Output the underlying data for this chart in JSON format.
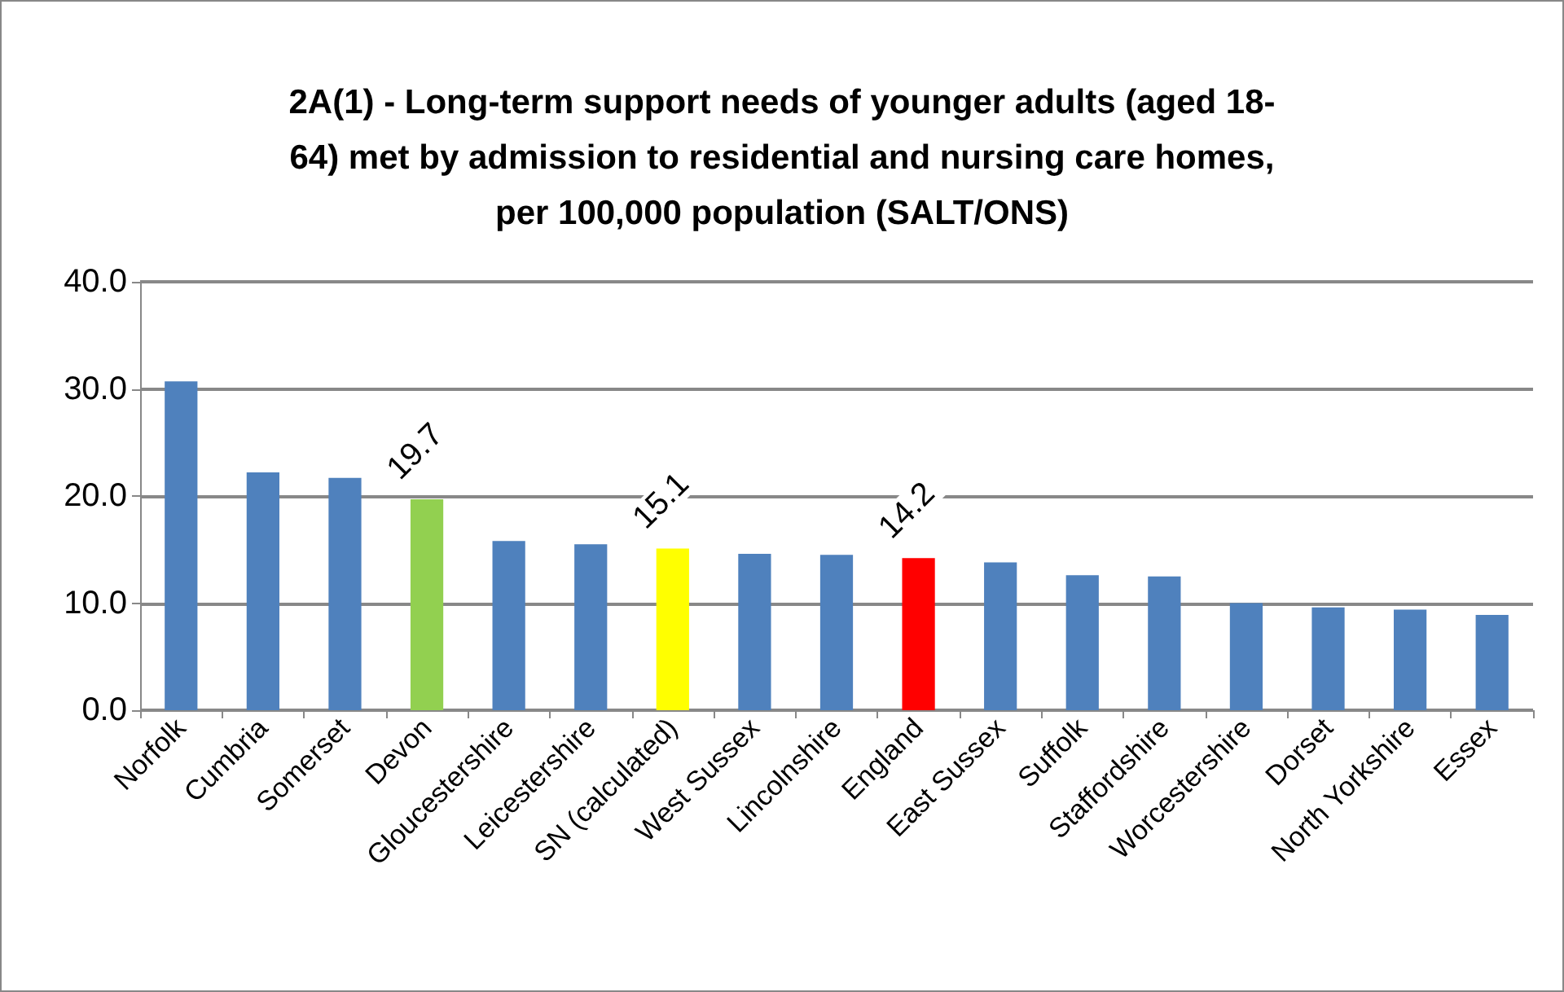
{
  "chart_data": {
    "type": "bar",
    "title": "2A(1) - Long-term support needs of younger adults (aged 18-\n64) met by admission to residential and nursing care homes,\nper 100,000 population (SALT/ONS)",
    "categories": [
      "Norfolk",
      "Cumbria",
      "Somerset",
      "Devon",
      "Gloucestershire",
      "Leicestershire",
      "SN (calculated)",
      "West Sussex",
      "Lincolnshire",
      "England",
      "East Sussex",
      "Suffolk",
      "Staffordshire",
      "Worcestershire",
      "Dorset",
      "North Yorkshire",
      "Essex"
    ],
    "values": [
      30.7,
      22.2,
      21.7,
      19.7,
      15.8,
      15.5,
      15.1,
      14.6,
      14.5,
      14.2,
      13.8,
      12.6,
      12.5,
      10.0,
      9.6,
      9.4,
      8.9
    ],
    "colors": [
      "#4f81bd",
      "#4f81bd",
      "#4f81bd",
      "#92d050",
      "#4f81bd",
      "#4f81bd",
      "#ffff00",
      "#4f81bd",
      "#4f81bd",
      "#ff0000",
      "#4f81bd",
      "#4f81bd",
      "#4f81bd",
      "#4f81bd",
      "#4f81bd",
      "#4f81bd",
      "#4f81bd"
    ],
    "value_labels": [
      null,
      null,
      null,
      "19.7",
      null,
      null,
      "15.1",
      null,
      null,
      "14.2",
      null,
      null,
      null,
      null,
      null,
      null,
      null
    ],
    "ylim": [
      0,
      40
    ],
    "yticks": [
      {
        "value": 0,
        "label": "0.0"
      },
      {
        "value": 10,
        "label": "10.0"
      },
      {
        "value": 20,
        "label": "20.0"
      },
      {
        "value": 30,
        "label": "30.0"
      },
      {
        "value": 40,
        "label": "40.0"
      }
    ],
    "grid": "y"
  }
}
